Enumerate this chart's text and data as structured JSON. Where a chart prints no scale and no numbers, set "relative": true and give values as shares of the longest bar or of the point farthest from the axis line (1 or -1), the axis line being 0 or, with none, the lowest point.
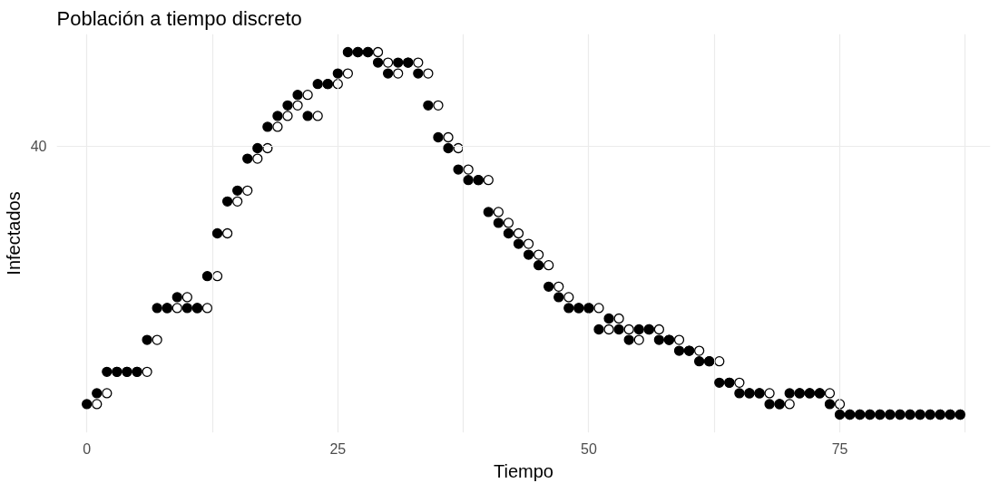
{
  "chart_data": {
    "type": "scatter",
    "title": "Población a tiempo discreto",
    "xlabel": "Tiempo",
    "ylabel": "Infectados",
    "relative": true,
    "marker": "circle",
    "grid": true,
    "xlim": [
      -3,
      90
    ],
    "xticks": [
      0,
      {
        "value": 12.5,
        "label": null
      },
      25,
      {
        "value": 37.5,
        "label": null
      },
      50,
      {
        "value": 62.5,
        "label": null
      },
      75,
      {
        "value": 87.5,
        "label": null
      }
    ],
    "annotations": [
      "40"
    ],
    "series": [
      {
        "color": "#000000",
        "x": [
          0,
          1,
          2,
          3,
          4,
          5,
          6,
          7,
          8,
          9,
          10,
          11,
          12,
          13,
          14,
          15,
          16,
          17,
          18,
          19,
          20,
          21,
          22,
          23,
          24,
          25,
          26,
          27,
          28,
          29,
          30,
          31,
          32,
          33,
          34,
          35,
          36,
          37,
          38,
          39,
          40,
          41,
          42,
          43,
          44,
          45,
          46,
          47,
          48,
          49,
          50,
          51,
          52,
          53,
          54,
          55,
          56,
          57,
          58,
          59,
          60,
          61,
          62,
          63,
          64,
          65,
          66,
          67,
          68,
          69,
          70,
          71,
          72,
          73,
          74,
          75,
          76,
          77,
          78,
          79,
          80,
          81,
          82,
          83,
          84,
          85,
          86,
          87
        ],
        "values": [
          0.029,
          0.059,
          0.118,
          0.118,
          0.118,
          0.118,
          0.206,
          0.294,
          0.294,
          0.324,
          0.294,
          0.294,
          0.382,
          0.5,
          0.588,
          0.618,
          0.706,
          0.735,
          0.794,
          0.824,
          0.853,
          0.882,
          0.824,
          0.912,
          0.912,
          0.941,
          1,
          1,
          1,
          0.971,
          0.941,
          0.971,
          0.971,
          0.941,
          0.853,
          0.765,
          0.735,
          0.676,
          0.647,
          0.647,
          0.559,
          0.529,
          0.5,
          0.471,
          0.441,
          0.412,
          0.353,
          0.324,
          0.294,
          0.294,
          0.294,
          0.235,
          0.265,
          0.235,
          0.206,
          0.235,
          0.235,
          0.206,
          0.206,
          0.176,
          0.176,
          0.147,
          0.147,
          0.088,
          0.088,
          0.059,
          0.059,
          0.059,
          0.029,
          0.029,
          0.059,
          0.059,
          0.059,
          0.059,
          0.029,
          0,
          0,
          0,
          0,
          0,
          0,
          0,
          0,
          0,
          0,
          0,
          0,
          0
        ]
      },
      {
        "color": "#000000",
        "x": [
          1,
          2,
          3,
          4,
          5,
          6,
          7,
          8,
          9,
          10,
          11,
          12,
          13,
          14,
          15,
          16,
          17,
          18,
          19,
          20,
          21,
          22,
          23,
          24,
          25,
          26,
          27,
          28,
          29,
          30,
          31,
          32,
          33,
          34,
          35,
          36,
          37,
          38,
          39,
          40,
          41,
          42,
          43,
          44,
          45,
          46,
          47,
          48,
          49,
          50,
          51,
          52,
          53,
          54,
          55,
          56,
          57,
          58,
          59,
          60,
          61,
          62,
          63,
          64,
          65,
          66,
          67,
          68,
          69,
          70,
          71,
          72,
          73,
          74,
          75,
          76,
          77,
          78,
          79,
          80,
          81,
          82,
          83,
          84,
          85,
          86,
          87
        ],
        "values": [
          0.029,
          0.059,
          0.118,
          0.118,
          0.118,
          0.118,
          0.206,
          0.294,
          0.294,
          0.324,
          0.294,
          0.294,
          0.382,
          0.5,
          0.588,
          0.618,
          0.706,
          0.735,
          0.794,
          0.824,
          0.853,
          0.882,
          0.824,
          0.912,
          0.912,
          0.941,
          1,
          1,
          1,
          0.971,
          0.941,
          0.971,
          0.971,
          0.941,
          0.853,
          0.765,
          0.735,
          0.676,
          0.647,
          0.647,
          0.559,
          0.529,
          0.5,
          0.471,
          0.441,
          0.412,
          0.353,
          0.324,
          0.294,
          0.294,
          0.294,
          0.235,
          0.265,
          0.235,
          0.206,
          0.235,
          0.235,
          0.206,
          0.206,
          0.176,
          0.176,
          0.147,
          0.147,
          0.088,
          0.088,
          0.059,
          0.059,
          0.059,
          0.029,
          0.029,
          0.059,
          0.059,
          0.059,
          0.059,
          0.029,
          0,
          0,
          0,
          0,
          0,
          0,
          0,
          0,
          0,
          0,
          0,
          0
        ]
      }
    ]
  }
}
